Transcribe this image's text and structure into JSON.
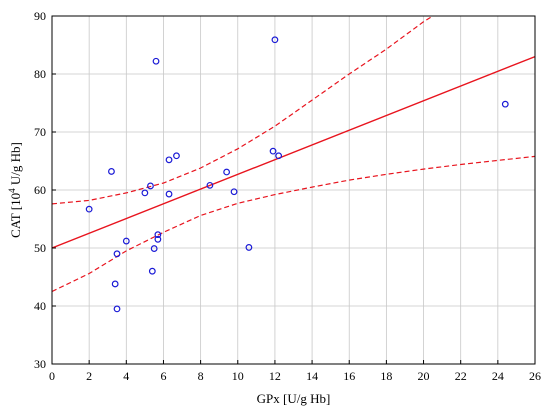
{
  "chart_data": {
    "type": "scatter",
    "xlabel": "GPx [U/g Hb]",
    "ylabel_main": "CAT [10",
    "ylabel_sup": "4",
    "ylabel_tail": " U/g Hb]",
    "xlim": [
      0,
      26
    ],
    "ylim": [
      30,
      90
    ],
    "xticks": [
      "0",
      "2",
      "4",
      "6",
      "8",
      "10",
      "12",
      "14",
      "16",
      "18",
      "20",
      "22",
      "24",
      "26"
    ],
    "yticks": [
      "30",
      "40",
      "50",
      "60",
      "70",
      "80",
      "90"
    ],
    "grid": true,
    "series": [
      {
        "marker_color": "#1a1ad6",
        "points": [
          {
            "x": 2.0,
            "y": 56.7
          },
          {
            "x": 3.2,
            "y": 63.2
          },
          {
            "x": 3.4,
            "y": 43.8
          },
          {
            "x": 3.5,
            "y": 49.0
          },
          {
            "x": 3.5,
            "y": 39.5
          },
          {
            "x": 4.0,
            "y": 51.2
          },
          {
            "x": 5.0,
            "y": 59.5
          },
          {
            "x": 5.3,
            "y": 60.7
          },
          {
            "x": 5.4,
            "y": 46.0
          },
          {
            "x": 5.5,
            "y": 49.9
          },
          {
            "x": 5.6,
            "y": 82.2
          },
          {
            "x": 5.7,
            "y": 52.3
          },
          {
            "x": 5.7,
            "y": 51.5
          },
          {
            "x": 6.3,
            "y": 65.2
          },
          {
            "x": 6.3,
            "y": 59.3
          },
          {
            "x": 6.7,
            "y": 65.9
          },
          {
            "x": 8.5,
            "y": 60.8
          },
          {
            "x": 9.4,
            "y": 63.1
          },
          {
            "x": 9.8,
            "y": 59.7
          },
          {
            "x": 10.6,
            "y": 50.1
          },
          {
            "x": 11.9,
            "y": 66.7
          },
          {
            "x": 12.0,
            "y": 85.9
          },
          {
            "x": 12.2,
            "y": 65.9
          },
          {
            "x": 24.4,
            "y": 74.8
          }
        ]
      }
    ],
    "fit_line": {
      "x0": 0,
      "y0": 50.0,
      "x1": 26,
      "y1": 83.0,
      "color": "#e8141e"
    },
    "ci_upper": [
      [
        0,
        57.6
      ],
      [
        2,
        58.2
      ],
      [
        4,
        59.5
      ],
      [
        6,
        61.2
      ],
      [
        8,
        63.8
      ],
      [
        10,
        67.1
      ],
      [
        12,
        71.0
      ],
      [
        14,
        75.5
      ],
      [
        16,
        80.0
      ],
      [
        18,
        84.3
      ],
      [
        20,
        89.0
      ],
      [
        21,
        91.0
      ]
    ],
    "ci_lower": [
      [
        0,
        42.5
      ],
      [
        2,
        45.6
      ],
      [
        4,
        49.5
      ],
      [
        6,
        52.7
      ],
      [
        8,
        55.6
      ],
      [
        10,
        57.7
      ],
      [
        12,
        59.2
      ],
      [
        14,
        60.5
      ],
      [
        16,
        61.7
      ],
      [
        18,
        62.7
      ],
      [
        20,
        63.6
      ],
      [
        22,
        64.4
      ],
      [
        24,
        65.1
      ],
      [
        26,
        65.8
      ]
    ]
  }
}
